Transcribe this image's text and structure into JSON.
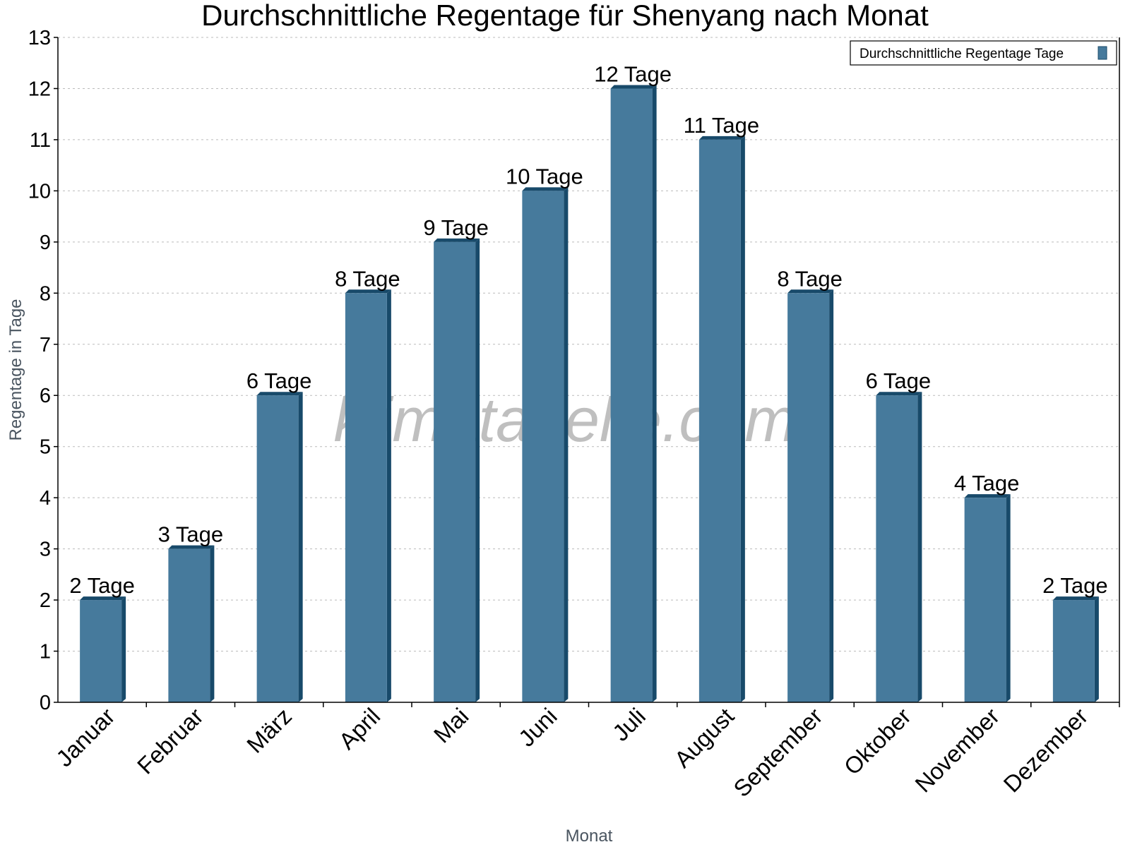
{
  "chart_data": {
    "type": "bar",
    "title": "Durchschnittliche Regentage für Shenyang nach Monat",
    "xlabel": "Monat",
    "ylabel": "Regentage in Tage",
    "categories": [
      "Januar",
      "Februar",
      "März",
      "April",
      "Mai",
      "Juni",
      "Juli",
      "August",
      "September",
      "Oktober",
      "November",
      "Dezember"
    ],
    "series": [
      {
        "name": "Durchschnittliche Regentage Tage",
        "values": [
          2,
          3,
          6,
          8,
          9,
          10,
          12,
          11,
          8,
          6,
          4,
          2
        ]
      }
    ],
    "data_label_suffix": " Tage",
    "ylim": [
      0,
      13
    ],
    "yticks": [
      0,
      1,
      2,
      3,
      4,
      5,
      6,
      7,
      8,
      9,
      10,
      11,
      12,
      13
    ],
    "grid": true,
    "legend_position": "top-right",
    "colors": {
      "bar": "#467a9c",
      "bar_side": "#184a6a"
    },
    "watermark": "klimatabelle.com"
  }
}
